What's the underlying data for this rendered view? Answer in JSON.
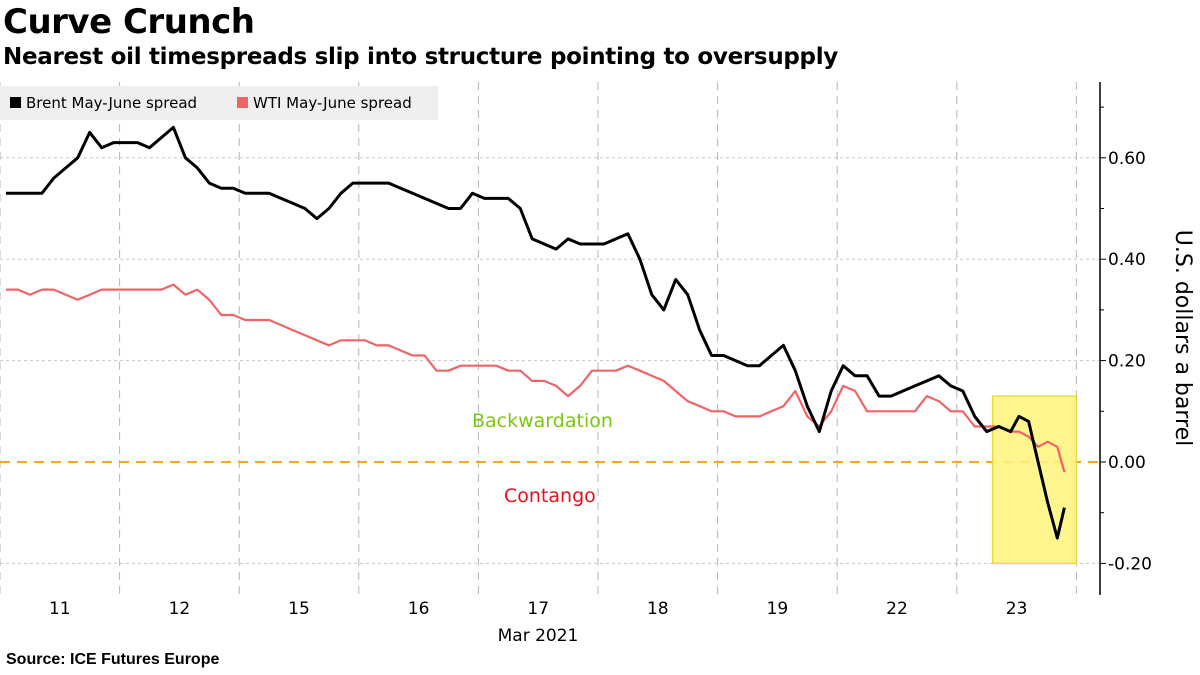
{
  "title": "Curve Crunch",
  "subtitle": "Nearest oil timespreads slip into structure pointing to oversupply",
  "source": "Source: ICE Futures Europe",
  "colors": {
    "brent": "#000000",
    "wti": "#f06468",
    "zero_line": "#f5a623",
    "highlight": "#fff37a",
    "highlight_border": "#e8dc3c",
    "backwardation": "#7ac70c",
    "contango": "#e3101e",
    "grid": "#c8c8c8",
    "legend_bg": "#efefef"
  },
  "chart_data": {
    "type": "line",
    "title": "Curve Crunch",
    "subtitle": "Nearest oil timespreads slip into structure pointing to oversupply",
    "xlabel": "Mar 2021",
    "ylabel": "U.S. dollars a barrel",
    "ylim": [
      -0.2,
      0.7
    ],
    "yticks": [
      0.6,
      0.4,
      0.2,
      0.0,
      -0.2
    ],
    "ytick_labels": [
      "0.60",
      "0.40",
      "0.20",
      "0.00",
      "-0.20"
    ],
    "x_categories": [
      "11",
      "12",
      "15",
      "16",
      "17",
      "18",
      "19",
      "22",
      "23"
    ],
    "x_month_label": "Mar 2021",
    "legend": {
      "placement": "top-left",
      "entries": [
        "Brent May-June spread",
        "WTI May-June spread"
      ]
    },
    "grid": true,
    "reference_line": {
      "y": 0.0,
      "style": "dashed"
    },
    "annotations": [
      {
        "text": "Backwardation",
        "x_day": 5.0,
        "y": 0.08,
        "color_key": "backwardation"
      },
      {
        "text": "Contango",
        "x_day": 5.0,
        "y": -0.07,
        "color_key": "contango"
      }
    ],
    "highlight_region": {
      "x_start_day": 8.3,
      "x_end_day": 9.0,
      "y_low": -0.2,
      "y_high": 0.13
    },
    "series": [
      {
        "name": "Brent May-June spread",
        "color_key": "brent",
        "x_day_offset": [
          0.05,
          0.15,
          0.25,
          0.35,
          0.45,
          0.55,
          0.65,
          0.75,
          0.85,
          0.95,
          1.05,
          1.15,
          1.25,
          1.35,
          1.45,
          1.55,
          1.65,
          1.75,
          1.85,
          1.95,
          2.05,
          2.15,
          2.25,
          2.35,
          2.45,
          2.55,
          2.65,
          2.75,
          2.85,
          2.95,
          3.05,
          3.15,
          3.25,
          3.35,
          3.45,
          3.55,
          3.65,
          3.75,
          3.85,
          3.95,
          4.05,
          4.15,
          4.25,
          4.35,
          4.45,
          4.55,
          4.65,
          4.75,
          4.85,
          4.95,
          5.05,
          5.15,
          5.25,
          5.35,
          5.45,
          5.55,
          5.65,
          5.75,
          5.85,
          5.95,
          6.05,
          6.15,
          6.25,
          6.35,
          6.45,
          6.55,
          6.65,
          6.75,
          6.85,
          6.95,
          7.05,
          7.15,
          7.25,
          7.35,
          7.45,
          7.55,
          7.65,
          7.75,
          7.85,
          7.95,
          8.05,
          8.15,
          8.25,
          8.35,
          8.45,
          8.52,
          8.6,
          8.68,
          8.76,
          8.84,
          8.9
        ],
        "values": [
          0.53,
          0.53,
          0.53,
          0.53,
          0.56,
          0.58,
          0.6,
          0.65,
          0.62,
          0.63,
          0.63,
          0.63,
          0.62,
          0.64,
          0.66,
          0.6,
          0.58,
          0.55,
          0.54,
          0.54,
          0.53,
          0.53,
          0.53,
          0.52,
          0.51,
          0.5,
          0.48,
          0.5,
          0.53,
          0.55,
          0.55,
          0.55,
          0.55,
          0.54,
          0.53,
          0.52,
          0.51,
          0.5,
          0.5,
          0.53,
          0.52,
          0.52,
          0.52,
          0.5,
          0.44,
          0.43,
          0.42,
          0.44,
          0.43,
          0.43,
          0.43,
          0.44,
          0.45,
          0.4,
          0.33,
          0.3,
          0.36,
          0.33,
          0.26,
          0.21,
          0.21,
          0.2,
          0.19,
          0.19,
          0.21,
          0.23,
          0.18,
          0.11,
          0.06,
          0.14,
          0.19,
          0.17,
          0.17,
          0.13,
          0.13,
          0.14,
          0.15,
          0.16,
          0.17,
          0.15,
          0.14,
          0.09,
          0.06,
          0.07,
          0.06,
          0.09,
          0.08,
          0.0,
          -0.08,
          -0.15,
          -0.09
        ]
      },
      {
        "name": "WTI May-June spread",
        "color_key": "wti",
        "x_day_offset": [
          0.05,
          0.15,
          0.25,
          0.35,
          0.45,
          0.55,
          0.65,
          0.75,
          0.85,
          0.95,
          1.05,
          1.15,
          1.25,
          1.35,
          1.45,
          1.55,
          1.65,
          1.75,
          1.85,
          1.95,
          2.05,
          2.15,
          2.25,
          2.35,
          2.45,
          2.55,
          2.65,
          2.75,
          2.85,
          2.95,
          3.05,
          3.15,
          3.25,
          3.35,
          3.45,
          3.55,
          3.65,
          3.75,
          3.85,
          3.95,
          4.05,
          4.15,
          4.25,
          4.35,
          4.45,
          4.55,
          4.65,
          4.75,
          4.85,
          4.95,
          5.05,
          5.15,
          5.25,
          5.35,
          5.45,
          5.55,
          5.65,
          5.75,
          5.85,
          5.95,
          6.05,
          6.15,
          6.25,
          6.35,
          6.45,
          6.55,
          6.65,
          6.75,
          6.85,
          6.95,
          7.05,
          7.15,
          7.25,
          7.35,
          7.45,
          7.55,
          7.65,
          7.75,
          7.85,
          7.95,
          8.05,
          8.15,
          8.25,
          8.35,
          8.45,
          8.52,
          8.6,
          8.68,
          8.76,
          8.84,
          8.9
        ],
        "values": [
          0.34,
          0.34,
          0.33,
          0.34,
          0.34,
          0.33,
          0.32,
          0.33,
          0.34,
          0.34,
          0.34,
          0.34,
          0.34,
          0.34,
          0.35,
          0.33,
          0.34,
          0.32,
          0.29,
          0.29,
          0.28,
          0.28,
          0.28,
          0.27,
          0.26,
          0.25,
          0.24,
          0.23,
          0.24,
          0.24,
          0.24,
          0.23,
          0.23,
          0.22,
          0.21,
          0.21,
          0.18,
          0.18,
          0.19,
          0.19,
          0.19,
          0.19,
          0.18,
          0.18,
          0.16,
          0.16,
          0.15,
          0.13,
          0.15,
          0.18,
          0.18,
          0.18,
          0.19,
          0.18,
          0.17,
          0.16,
          0.14,
          0.12,
          0.11,
          0.1,
          0.1,
          0.09,
          0.09,
          0.09,
          0.1,
          0.11,
          0.14,
          0.09,
          0.07,
          0.1,
          0.15,
          0.14,
          0.1,
          0.1,
          0.1,
          0.1,
          0.1,
          0.13,
          0.12,
          0.1,
          0.1,
          0.07,
          0.07,
          0.07,
          0.06,
          0.06,
          0.05,
          0.03,
          0.04,
          0.03,
          -0.02
        ]
      }
    ]
  }
}
